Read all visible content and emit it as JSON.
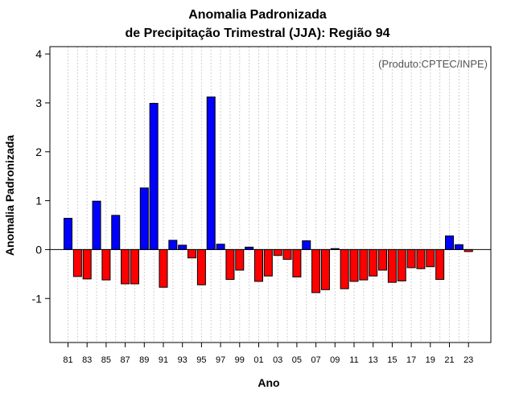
{
  "title_line1": "Anomalia Padronizada",
  "title_line2": "de Precipitação Trimestral (JJA): Região 94",
  "credit": "(Produto:CPTEC/INPE)",
  "chart_data": {
    "type": "bar",
    "title": "Anomalia Padronizada de Precipitação Trimestral (JJA): Região 94",
    "xlabel": "Ano",
    "ylabel": "Anomalia Padronizada",
    "ylim": [
      -1.9,
      4.15
    ],
    "yticks": [
      -1,
      0,
      1,
      2,
      3,
      4
    ],
    "grid": "vertical dotted",
    "colors": {
      "positive": "#0000ff",
      "negative": "#ff0000"
    },
    "categories": [
      "81",
      "82",
      "83",
      "84",
      "85",
      "86",
      "87",
      "88",
      "89",
      "90",
      "91",
      "92",
      "93",
      "94",
      "95",
      "96",
      "97",
      "98",
      "99",
      "00",
      "01",
      "02",
      "03",
      "04",
      "05",
      "06",
      "07",
      "08",
      "09",
      "10",
      "11",
      "12",
      "13",
      "14",
      "15",
      "16",
      "17",
      "18",
      "19",
      "20",
      "21",
      "22",
      "23"
    ],
    "xtick_labels": [
      "81",
      "83",
      "85",
      "87",
      "89",
      "91",
      "93",
      "95",
      "97",
      "99",
      "01",
      "03",
      "05",
      "07",
      "09",
      "11",
      "13",
      "15",
      "17",
      "19",
      "21",
      "23"
    ],
    "values": [
      0.64,
      -0.55,
      -0.6,
      0.99,
      -0.62,
      0.7,
      -0.7,
      -0.7,
      1.26,
      2.99,
      -0.77,
      0.19,
      0.09,
      -0.17,
      -0.72,
      3.12,
      0.11,
      -0.61,
      -0.42,
      0.05,
      -0.65,
      -0.54,
      -0.12,
      -0.2,
      -0.56,
      0.18,
      -0.88,
      -0.82,
      0.02,
      -0.8,
      -0.65,
      -0.62,
      -0.54,
      -0.42,
      -0.67,
      -0.64,
      -0.37,
      -0.39,
      -0.35,
      -0.61,
      0.28,
      0.1,
      -0.04
    ]
  }
}
